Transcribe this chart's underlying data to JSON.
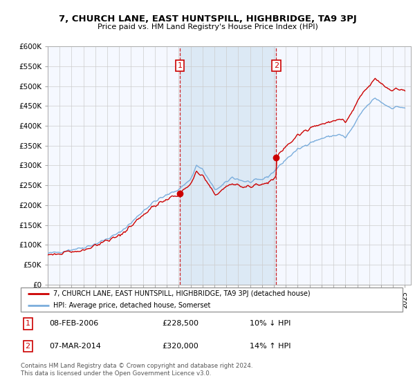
{
  "title": "7, CHURCH LANE, EAST HUNTSPILL, HIGHBRIDGE, TA9 3PJ",
  "subtitle": "Price paid vs. HM Land Registry's House Price Index (HPI)",
  "red_color": "#cc0000",
  "blue_color": "#7aaddc",
  "blue_fill": "#dce9f5",
  "background_color": "#f5f8ff",
  "legend_label_red": "7, CHURCH LANE, EAST HUNTSPILL, HIGHBRIDGE, TA9 3PJ (detached house)",
  "legend_label_blue": "HPI: Average price, detached house, Somerset",
  "sale1_year": 2006.1,
  "sale1_price": 228500,
  "sale2_year": 2014.2,
  "sale2_price": 320000,
  "footer": "Contains HM Land Registry data © Crown copyright and database right 2024.\nThis data is licensed under the Open Government Licence v3.0.",
  "ylim": [
    0,
    600000
  ],
  "yticks": [
    0,
    50000,
    100000,
    150000,
    200000,
    250000,
    300000,
    350000,
    400000,
    450000,
    500000,
    550000,
    600000
  ],
  "ytick_labels": [
    "£0",
    "£50K",
    "£100K",
    "£150K",
    "£200K",
    "£250K",
    "£300K",
    "£350K",
    "£400K",
    "£450K",
    "£500K",
    "£550K",
    "£600K"
  ],
  "xlim": [
    1995.0,
    2025.5
  ],
  "xtick_years": [
    1995,
    1996,
    1997,
    1998,
    1999,
    2000,
    2001,
    2002,
    2003,
    2004,
    2005,
    2006,
    2007,
    2008,
    2009,
    2010,
    2011,
    2012,
    2013,
    2014,
    2015,
    2016,
    2017,
    2018,
    2019,
    2020,
    2021,
    2022,
    2023,
    2024,
    2025
  ]
}
